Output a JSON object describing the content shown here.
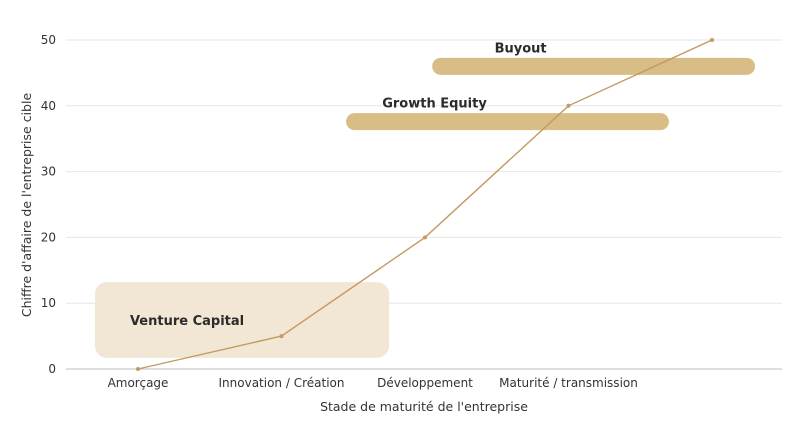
{
  "chart_data": {
    "type": "line",
    "title": "",
    "xlabel": "Stade de maturité de l'entreprise",
    "ylabel": "Chiffre d'affaire de l'entreprise cible",
    "categories": [
      "Amorçage",
      "Innovation / Création",
      "Développement",
      "Maturité / transmission"
    ],
    "x": [
      0,
      1,
      2,
      3,
      4
    ],
    "values": [
      0,
      5,
      20,
      40,
      50
    ],
    "xlim": [
      -0.5,
      4.5
    ],
    "ylim": [
      0,
      50
    ],
    "yticks": [
      0,
      10,
      20,
      30,
      40,
      50
    ],
    "ytick_labels": [
      "0",
      "10",
      "20",
      "30",
      "40",
      "50"
    ],
    "grid": "horizontal",
    "line_color": "#c49a60",
    "bands": [
      {
        "label": "Venture Capital",
        "x_start": -0.3,
        "x_end": 1.75,
        "y_low": 1.7,
        "y_high": 13.2,
        "style": "box",
        "color": "#f2e6d4"
      },
      {
        "label": "Growth Equity",
        "x_start": 1.45,
        "x_end": 3.7,
        "y_center": 37.6,
        "style": "bar",
        "color": "#d8bd86"
      },
      {
        "label": "Buyout",
        "x_start": 2.05,
        "x_end": 4.3,
        "y_center": 46,
        "style": "bar",
        "color": "#d8bd86"
      }
    ]
  }
}
